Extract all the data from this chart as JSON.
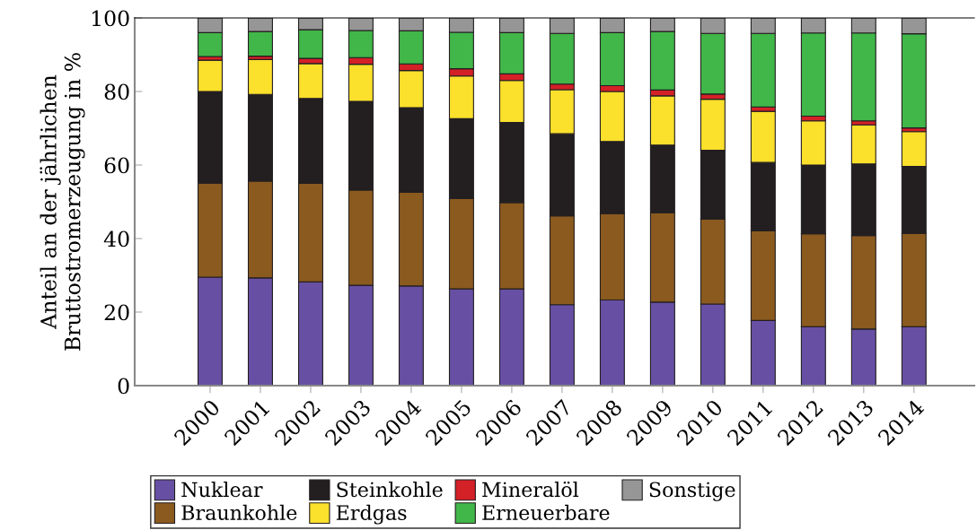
{
  "chart_data": {
    "type": "bar",
    "stacked": true,
    "ylabel": "Anteil an der jährlichen\nBruttostromerzeugung in %",
    "categories": [
      "2000",
      "2001",
      "2002",
      "2003",
      "2004",
      "2005",
      "2006",
      "2007",
      "2008",
      "2009",
      "2010",
      "2011",
      "2012",
      "2013",
      "2014"
    ],
    "ylim": [
      0,
      100
    ],
    "yticks": [
      0,
      20,
      40,
      60,
      80,
      100
    ],
    "grid": false,
    "legend": "bottom",
    "series": [
      {
        "name": "Nuklear",
        "color": "#6750a4",
        "values": [
          29.5,
          29.3,
          28.2,
          27.3,
          27.1,
          26.3,
          26.3,
          22.0,
          23.3,
          22.7,
          22.2,
          17.7,
          16.0,
          15.4,
          16.0
        ]
      },
      {
        "name": "Braunkohle",
        "color": "#8b5a1f",
        "values": [
          25.6,
          26.3,
          26.8,
          25.9,
          25.5,
          24.6,
          23.5,
          24.2,
          23.5,
          24.3,
          23.1,
          24.4,
          25.3,
          25.4,
          25.4
        ]
      },
      {
        "name": "Steinkohle",
        "color": "#231f20",
        "values": [
          24.9,
          23.6,
          23.1,
          24.1,
          23.0,
          21.7,
          21.8,
          22.3,
          19.6,
          18.4,
          18.7,
          18.6,
          18.7,
          19.5,
          18.2
        ]
      },
      {
        "name": "Erdgas",
        "color": "#fbe02c",
        "values": [
          8.5,
          9.5,
          9.5,
          10.1,
          10.1,
          11.6,
          11.4,
          12.0,
          13.6,
          13.4,
          13.9,
          13.9,
          12.0,
          10.6,
          9.5
        ]
      },
      {
        "name": "Mineralöl",
        "color": "#d42027",
        "values": [
          1.0,
          0.9,
          1.4,
          1.8,
          1.8,
          2.0,
          1.8,
          1.5,
          1.6,
          1.6,
          1.4,
          1.2,
          1.3,
          1.1,
          1.0
        ]
      },
      {
        "name": "Erneuerbare",
        "color": "#41b649",
        "values": [
          6.5,
          6.7,
          7.8,
          7.4,
          9.0,
          9.9,
          11.2,
          13.8,
          14.4,
          15.9,
          16.5,
          20.0,
          22.6,
          23.9,
          25.6
        ]
      },
      {
        "name": "Sonstige",
        "color": "#969696",
        "values": [
          4.0,
          3.7,
          3.2,
          3.4,
          3.5,
          3.9,
          4.0,
          4.2,
          4.0,
          3.7,
          4.2,
          4.2,
          4.1,
          4.1,
          4.3
        ]
      }
    ]
  }
}
